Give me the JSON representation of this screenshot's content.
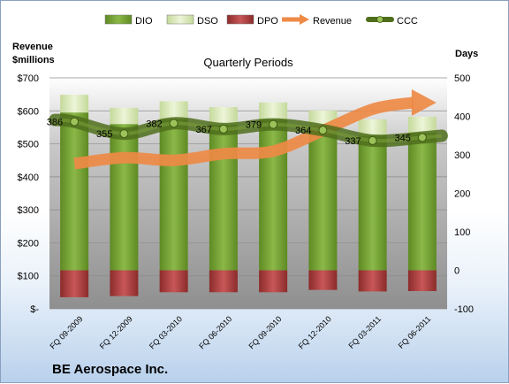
{
  "chart_data": {
    "type": "bar",
    "title": "Quarterly Periods",
    "company": "BE Aerospace Inc.",
    "left_axis_title": [
      "Revenue",
      "$millions"
    ],
    "right_axis_title": "Days",
    "left_ticks": [
      "$-",
      "$100",
      "$200",
      "$300",
      "$400",
      "$500",
      "$600",
      "$700"
    ],
    "left_ylim": [
      0,
      700
    ],
    "right_ticks": [
      "-100",
      "0",
      "100",
      "200",
      "300",
      "400",
      "500"
    ],
    "right_ylim": [
      -100,
      500
    ],
    "categories": [
      "FQ 09-2009",
      "FQ 12-2009",
      "FQ 03-2010",
      "FQ 06-2010",
      "FQ 09-2010",
      "FQ 12-2010",
      "FQ 03-2011",
      "FQ 06-2011"
    ],
    "legend": [
      "DIO",
      "DSO",
      "DPO",
      "Revenue",
      "CCC"
    ],
    "legend_position": "top",
    "grid": true,
    "series": [
      {
        "name": "DIO",
        "axis": "right",
        "color": "#6f9a2e",
        "values": [
          410,
          380,
          393,
          378,
          392,
          375,
          350,
          357
        ]
      },
      {
        "name": "DSO",
        "axis": "right",
        "color": "#d8e8b0",
        "values": [
          46,
          42,
          46,
          46,
          44,
          40,
          42,
          42
        ]
      },
      {
        "name": "DPO",
        "axis": "right",
        "color": "#a93a3a",
        "values": [
          -70,
          -67,
          -57,
          -57,
          -57,
          -51,
          -55,
          -54
        ]
      },
      {
        "name": "Revenue",
        "axis": "left",
        "color": "#f0904a",
        "values": [
          440,
          458,
          450,
          470,
          478,
          540,
          605,
          625
        ]
      },
      {
        "name": "CCC",
        "axis": "right",
        "color": "#5a7a22",
        "values": [
          386,
          355,
          382,
          367,
          379,
          364,
          337,
          345
        ]
      }
    ],
    "ccc_labels": [
      "386",
      "355",
      "382",
      "367",
      "379",
      "364",
      "337",
      "345"
    ]
  }
}
